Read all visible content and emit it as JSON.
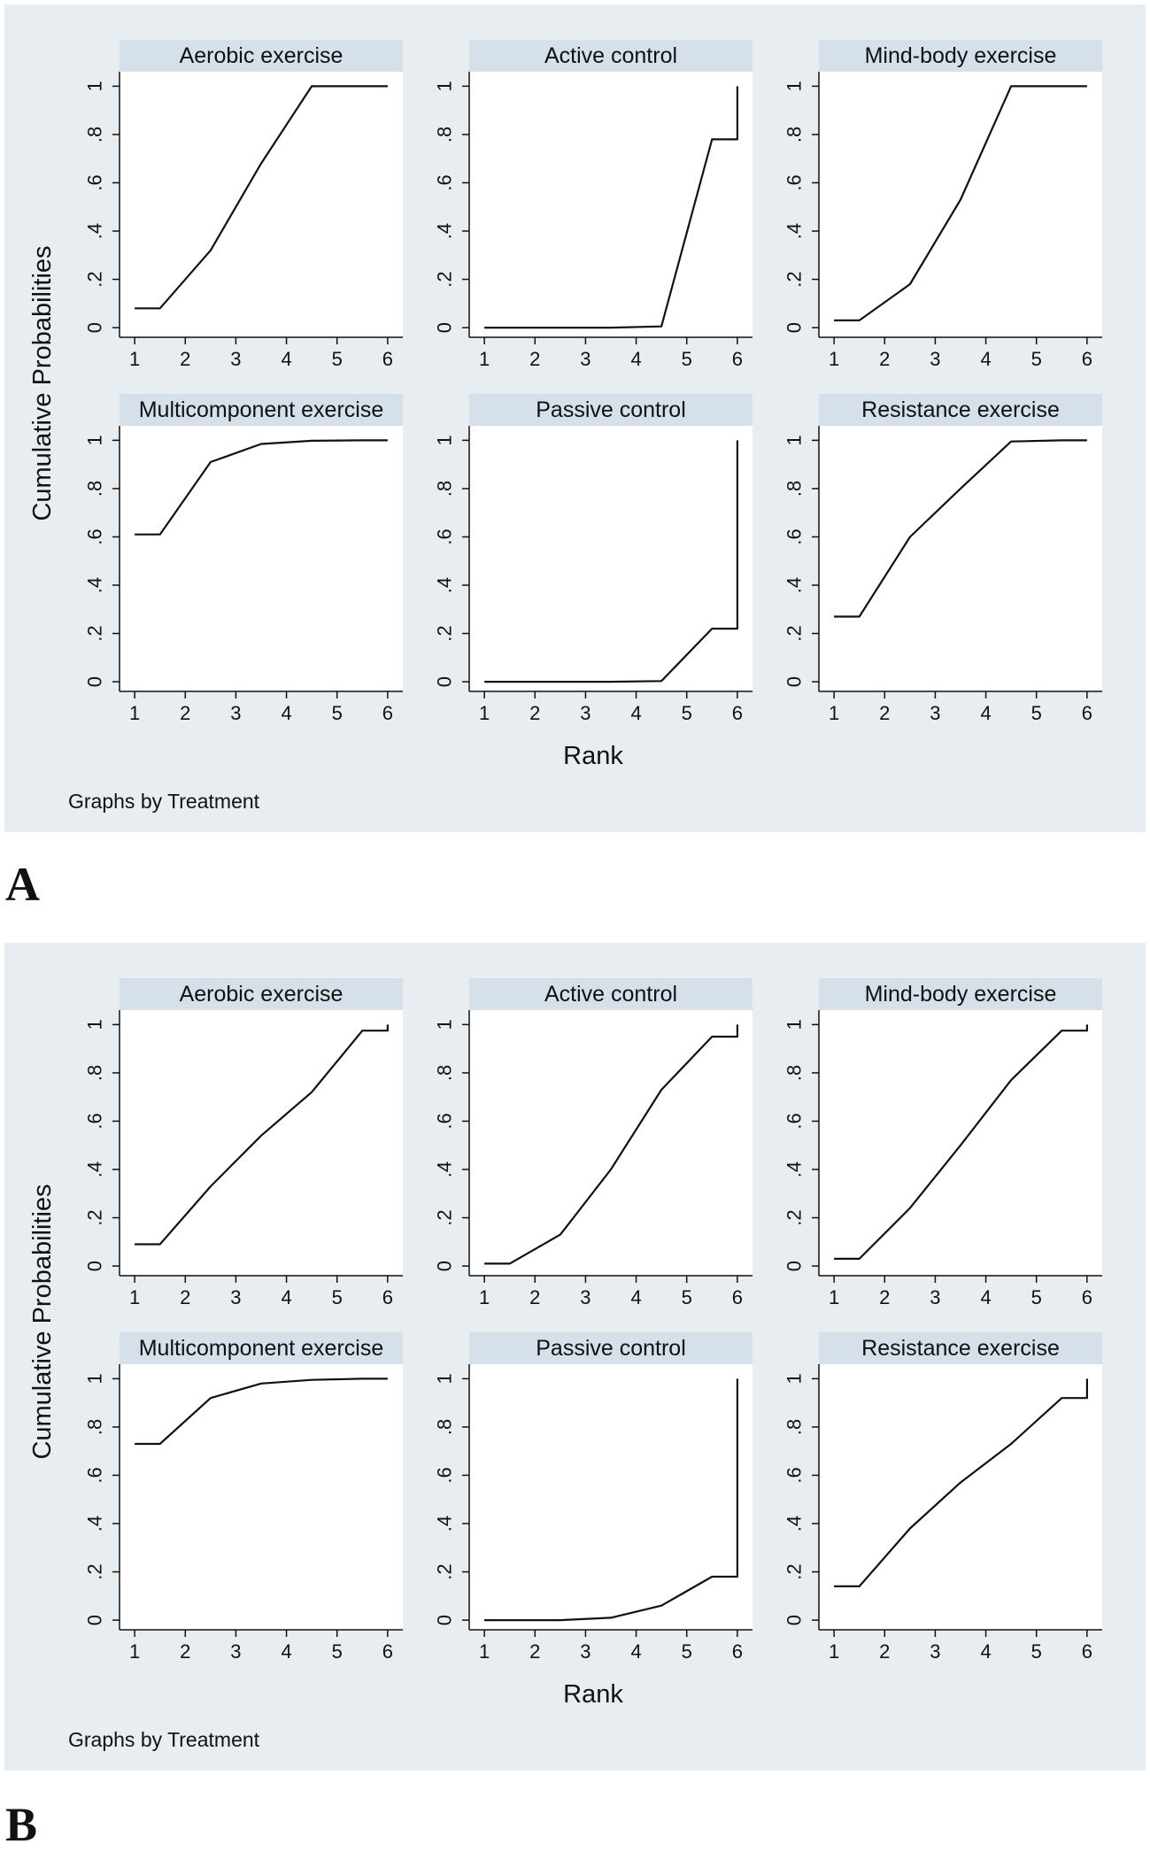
{
  "page": {
    "panel_labels": [
      "A",
      "B"
    ]
  },
  "chart_data": [
    {
      "type": "line",
      "figure_label": "A",
      "ylabel": "Cumulative Probabilities",
      "xlabel": "Rank",
      "note": "Graphs by Treatment",
      "x_ticks": [
        "1",
        "2",
        "3",
        "4",
        "5",
        "6"
      ],
      "y_ticks": [
        "0",
        ".2",
        ".4",
        ".6",
        ".8",
        "1"
      ],
      "xlim": [
        0.7,
        6.3
      ],
      "ylim": [
        -0.04,
        1.06
      ],
      "series": [
        {
          "name": "Aerobic exercise",
          "x": [
            1,
            1.5,
            2.5,
            3.5,
            4.5,
            5.5,
            6
          ],
          "y": [
            0.08,
            0.08,
            0.32,
            0.68,
            1.0,
            1.0,
            1.0
          ]
        },
        {
          "name": "Active control",
          "x": [
            1,
            1.5,
            2.5,
            3.5,
            4.5,
            5.5,
            6,
            6
          ],
          "y": [
            0.0,
            0.0,
            0.0,
            0.0,
            0.005,
            0.78,
            0.78,
            1.0
          ]
        },
        {
          "name": "Mind-body exercise",
          "x": [
            1,
            1.5,
            2.5,
            3.5,
            4.5,
            5.5,
            6
          ],
          "y": [
            0.03,
            0.03,
            0.18,
            0.53,
            1.0,
            1.0,
            1.0
          ]
        },
        {
          "name": "Multicomponent exercise",
          "x": [
            1,
            1.5,
            2.5,
            3.5,
            4.5,
            5.5,
            6
          ],
          "y": [
            0.61,
            0.61,
            0.91,
            0.985,
            0.998,
            1.0,
            1.0
          ]
        },
        {
          "name": "Passive control",
          "x": [
            1,
            1.5,
            2.5,
            3.5,
            4.5,
            5.5,
            6,
            6
          ],
          "y": [
            0.0,
            0.0,
            0.0,
            0.0,
            0.003,
            0.22,
            0.22,
            1.0
          ]
        },
        {
          "name": "Resistance exercise",
          "x": [
            1,
            1.5,
            2.5,
            3.5,
            4.5,
            5.5,
            6
          ],
          "y": [
            0.27,
            0.27,
            0.6,
            0.8,
            0.995,
            1.0,
            1.0
          ]
        }
      ]
    },
    {
      "type": "line",
      "figure_label": "B",
      "ylabel": "Cumulative Probabilities",
      "xlabel": "Rank",
      "note": "Graphs by Treatment",
      "x_ticks": [
        "1",
        "2",
        "3",
        "4",
        "5",
        "6"
      ],
      "y_ticks": [
        "0",
        ".2",
        ".4",
        ".6",
        ".8",
        "1"
      ],
      "xlim": [
        0.7,
        6.3
      ],
      "ylim": [
        -0.04,
        1.06
      ],
      "series": [
        {
          "name": "Aerobic exercise",
          "x": [
            1,
            1.5,
            2.5,
            3.5,
            4.5,
            5.5,
            6,
            6
          ],
          "y": [
            0.09,
            0.09,
            0.33,
            0.54,
            0.72,
            0.975,
            0.975,
            1.0
          ]
        },
        {
          "name": "Active control",
          "x": [
            1,
            1.5,
            2.5,
            3.5,
            4.5,
            5.5,
            6,
            6
          ],
          "y": [
            0.01,
            0.01,
            0.13,
            0.4,
            0.73,
            0.95,
            0.95,
            1.0
          ]
        },
        {
          "name": "Mind-body exercise",
          "x": [
            1,
            1.5,
            2.5,
            3.5,
            4.5,
            5.5,
            6,
            6
          ],
          "y": [
            0.03,
            0.03,
            0.24,
            0.5,
            0.77,
            0.975,
            0.975,
            1.0
          ]
        },
        {
          "name": "Multicomponent exercise",
          "x": [
            1,
            1.5,
            2.5,
            3.5,
            4.5,
            5.5,
            6
          ],
          "y": [
            0.73,
            0.73,
            0.92,
            0.98,
            0.995,
            1.0,
            1.0
          ]
        },
        {
          "name": "Passive control",
          "x": [
            1,
            1.5,
            2.5,
            3.5,
            4.5,
            5.5,
            6,
            6
          ],
          "y": [
            0.0,
            0.0,
            0.0,
            0.01,
            0.06,
            0.18,
            0.18,
            1.0
          ]
        },
        {
          "name": "Resistance exercise",
          "x": [
            1,
            1.5,
            2.5,
            3.5,
            4.5,
            5.5,
            6,
            6
          ],
          "y": [
            0.14,
            0.14,
            0.38,
            0.57,
            0.73,
            0.92,
            0.92,
            1.0
          ]
        }
      ]
    }
  ]
}
